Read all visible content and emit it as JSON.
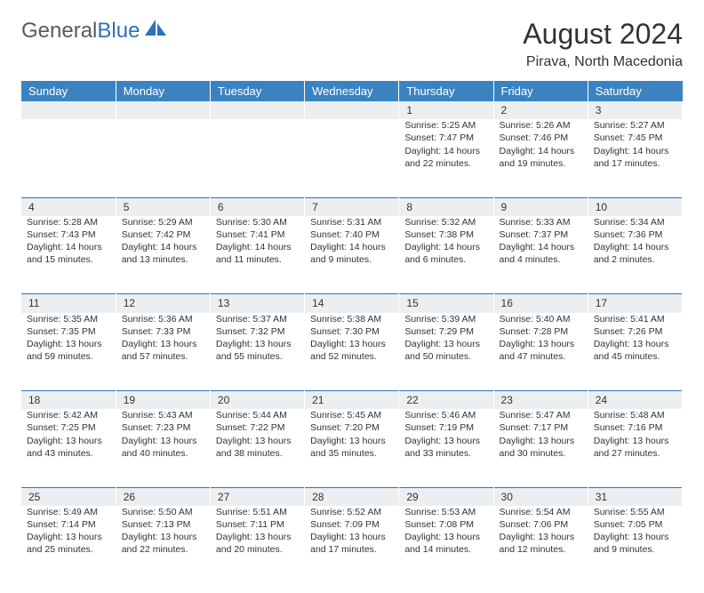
{
  "brand": {
    "text1": "General",
    "text2": "Blue"
  },
  "title": "August 2024",
  "subtitle": "Pirava, North Macedonia",
  "colors": {
    "header_bg": "#3b83c0",
    "header_text": "#ffffff",
    "daynum_bg": "#eceff1",
    "row_border": "#2f71b8",
    "body_text": "#333333",
    "logo_gray": "#5a5a5a",
    "logo_blue": "#2f71b8"
  },
  "day_headers": [
    "Sunday",
    "Monday",
    "Tuesday",
    "Wednesday",
    "Thursday",
    "Friday",
    "Saturday"
  ],
  "weeks": [
    [
      null,
      null,
      null,
      null,
      {
        "n": "1",
        "sr": "5:25 AM",
        "ss": "7:47 PM",
        "dh": "14",
        "dm": "22"
      },
      {
        "n": "2",
        "sr": "5:26 AM",
        "ss": "7:46 PM",
        "dh": "14",
        "dm": "19"
      },
      {
        "n": "3",
        "sr": "5:27 AM",
        "ss": "7:45 PM",
        "dh": "14",
        "dm": "17"
      }
    ],
    [
      {
        "n": "4",
        "sr": "5:28 AM",
        "ss": "7:43 PM",
        "dh": "14",
        "dm": "15"
      },
      {
        "n": "5",
        "sr": "5:29 AM",
        "ss": "7:42 PM",
        "dh": "14",
        "dm": "13"
      },
      {
        "n": "6",
        "sr": "5:30 AM",
        "ss": "7:41 PM",
        "dh": "14",
        "dm": "11"
      },
      {
        "n": "7",
        "sr": "5:31 AM",
        "ss": "7:40 PM",
        "dh": "14",
        "dm": "9"
      },
      {
        "n": "8",
        "sr": "5:32 AM",
        "ss": "7:38 PM",
        "dh": "14",
        "dm": "6"
      },
      {
        "n": "9",
        "sr": "5:33 AM",
        "ss": "7:37 PM",
        "dh": "14",
        "dm": "4"
      },
      {
        "n": "10",
        "sr": "5:34 AM",
        "ss": "7:36 PM",
        "dh": "14",
        "dm": "2"
      }
    ],
    [
      {
        "n": "11",
        "sr": "5:35 AM",
        "ss": "7:35 PM",
        "dh": "13",
        "dm": "59"
      },
      {
        "n": "12",
        "sr": "5:36 AM",
        "ss": "7:33 PM",
        "dh": "13",
        "dm": "57"
      },
      {
        "n": "13",
        "sr": "5:37 AM",
        "ss": "7:32 PM",
        "dh": "13",
        "dm": "55"
      },
      {
        "n": "14",
        "sr": "5:38 AM",
        "ss": "7:30 PM",
        "dh": "13",
        "dm": "52"
      },
      {
        "n": "15",
        "sr": "5:39 AM",
        "ss": "7:29 PM",
        "dh": "13",
        "dm": "50"
      },
      {
        "n": "16",
        "sr": "5:40 AM",
        "ss": "7:28 PM",
        "dh": "13",
        "dm": "47"
      },
      {
        "n": "17",
        "sr": "5:41 AM",
        "ss": "7:26 PM",
        "dh": "13",
        "dm": "45"
      }
    ],
    [
      {
        "n": "18",
        "sr": "5:42 AM",
        "ss": "7:25 PM",
        "dh": "13",
        "dm": "43"
      },
      {
        "n": "19",
        "sr": "5:43 AM",
        "ss": "7:23 PM",
        "dh": "13",
        "dm": "40"
      },
      {
        "n": "20",
        "sr": "5:44 AM",
        "ss": "7:22 PM",
        "dh": "13",
        "dm": "38"
      },
      {
        "n": "21",
        "sr": "5:45 AM",
        "ss": "7:20 PM",
        "dh": "13",
        "dm": "35"
      },
      {
        "n": "22",
        "sr": "5:46 AM",
        "ss": "7:19 PM",
        "dh": "13",
        "dm": "33"
      },
      {
        "n": "23",
        "sr": "5:47 AM",
        "ss": "7:17 PM",
        "dh": "13",
        "dm": "30"
      },
      {
        "n": "24",
        "sr": "5:48 AM",
        "ss": "7:16 PM",
        "dh": "13",
        "dm": "27"
      }
    ],
    [
      {
        "n": "25",
        "sr": "5:49 AM",
        "ss": "7:14 PM",
        "dh": "13",
        "dm": "25"
      },
      {
        "n": "26",
        "sr": "5:50 AM",
        "ss": "7:13 PM",
        "dh": "13",
        "dm": "22"
      },
      {
        "n": "27",
        "sr": "5:51 AM",
        "ss": "7:11 PM",
        "dh": "13",
        "dm": "20"
      },
      {
        "n": "28",
        "sr": "5:52 AM",
        "ss": "7:09 PM",
        "dh": "13",
        "dm": "17"
      },
      {
        "n": "29",
        "sr": "5:53 AM",
        "ss": "7:08 PM",
        "dh": "13",
        "dm": "14"
      },
      {
        "n": "30",
        "sr": "5:54 AM",
        "ss": "7:06 PM",
        "dh": "13",
        "dm": "12"
      },
      {
        "n": "31",
        "sr": "5:55 AM",
        "ss": "7:05 PM",
        "dh": "13",
        "dm": "9"
      }
    ]
  ],
  "labels": {
    "sunrise": "Sunrise:",
    "sunset": "Sunset:",
    "daylight": "Daylight:",
    "hours": "hours",
    "and": "and",
    "minutes": "minutes."
  }
}
